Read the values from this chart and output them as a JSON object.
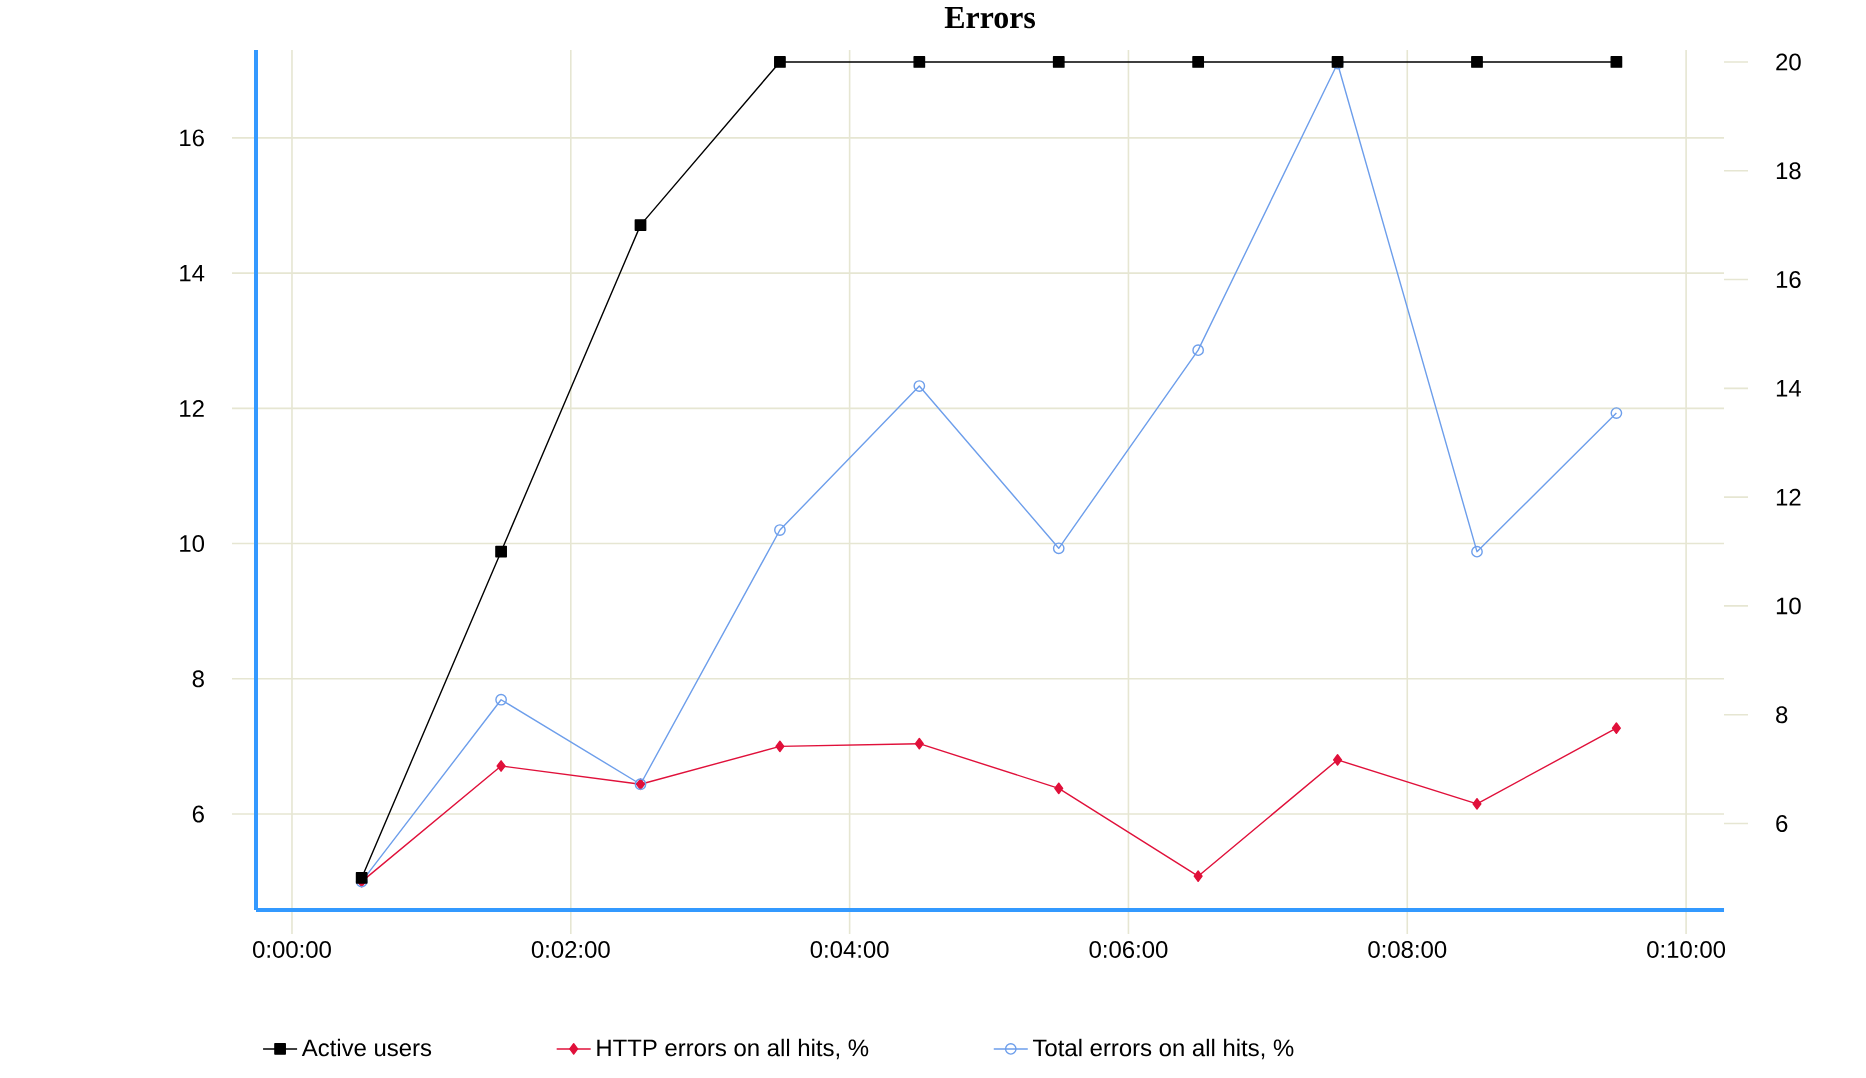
{
  "chart_data": {
    "type": "line",
    "title": "Errors",
    "x": [
      0.008333,
      0.025,
      0.041667,
      0.058333,
      0.075,
      0.091667,
      0.108333,
      0.125,
      0.141667,
      0.158333
    ],
    "series": [
      {
        "name": "Active users",
        "color": "#000000",
        "axis": "y2",
        "marker": "square",
        "values": [
          5,
          11,
          17,
          20,
          20,
          20,
          20,
          20,
          20,
          20
        ]
      },
      {
        "name": "HTTP errors on all hits, %",
        "color": "#e0103a",
        "marker": "diamond",
        "values": [
          5.0,
          6.71,
          6.44,
          7.0,
          7.04,
          6.38,
          5.08,
          6.8,
          6.15,
          7.27
        ]
      },
      {
        "name": "Total errors on all hits, %",
        "color": "#6d9eeb",
        "marker": "circle",
        "values": [
          5.0,
          7.69,
          6.44,
          10.2,
          12.33,
          9.93,
          12.86,
          17.1,
          9.88,
          11.93
        ]
      }
    ],
    "xlim": [
      -0.0043,
      0.1712
    ],
    "xticks": [
      {
        "value": 0,
        "label": "0:00:00"
      },
      {
        "value": 0.033333,
        "label": "0:02:00"
      },
      {
        "value": 0.066667,
        "label": "0:04:00"
      },
      {
        "value": 0.1,
        "label": "0:06:00"
      },
      {
        "value": 0.133333,
        "label": "0:08:00"
      },
      {
        "value": 0.166667,
        "label": "0:10:00"
      }
    ],
    "ylim": [
      4.58,
      17.3
    ],
    "yticks": [
      6,
      8,
      10,
      12,
      14,
      16
    ],
    "y2lim": [
      4.41,
      20.22
    ],
    "y2ticks": [
      6,
      8,
      10,
      12,
      14,
      16,
      18,
      20
    ],
    "grid": true,
    "legend": "bottom"
  }
}
